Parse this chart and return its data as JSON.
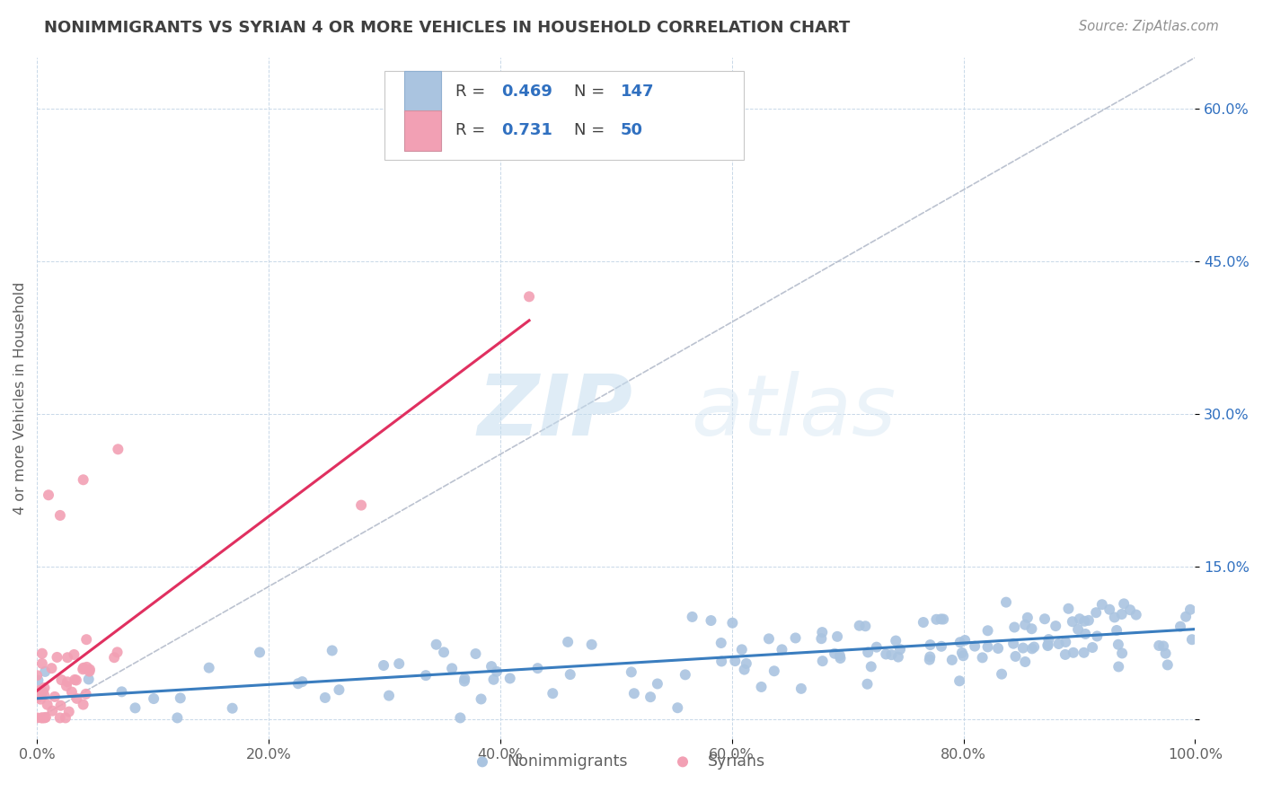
{
  "title": "NONIMMIGRANTS VS SYRIAN 4 OR MORE VEHICLES IN HOUSEHOLD CORRELATION CHART",
  "source": "Source: ZipAtlas.com",
  "ylabel": "4 or more Vehicles in Household",
  "xlim": [
    0,
    1
  ],
  "ylim": [
    -0.02,
    0.65
  ],
  "x_ticks": [
    0.0,
    0.2,
    0.4,
    0.6,
    0.8,
    1.0
  ],
  "x_tick_labels": [
    "0.0%",
    "20.0%",
    "40.0%",
    "60.0%",
    "80.0%",
    "100.0%"
  ],
  "y_ticks": [
    0.0,
    0.15,
    0.3,
    0.45,
    0.6
  ],
  "y_tick_labels": [
    "",
    "15.0%",
    "30.0%",
    "45.0%",
    "60.0%"
  ],
  "nonimmigrant_color": "#aac4e0",
  "syrian_color": "#f2a0b4",
  "nonimmigrant_line_color": "#3a7dbf",
  "syrian_line_color": "#e03060",
  "diagonal_color": "#b0b8c8",
  "watermark_zip": "ZIP",
  "watermark_atlas": "atlas",
  "background_color": "#ffffff",
  "grid_color": "#c8d8e8",
  "title_color": "#404040",
  "source_color": "#909090",
  "axis_label_color": "#606060",
  "tick_label_color": "#606060",
  "right_tick_color": "#3070c0",
  "legend_R_color": "#404040",
  "legend_N_color": "#3070c0"
}
